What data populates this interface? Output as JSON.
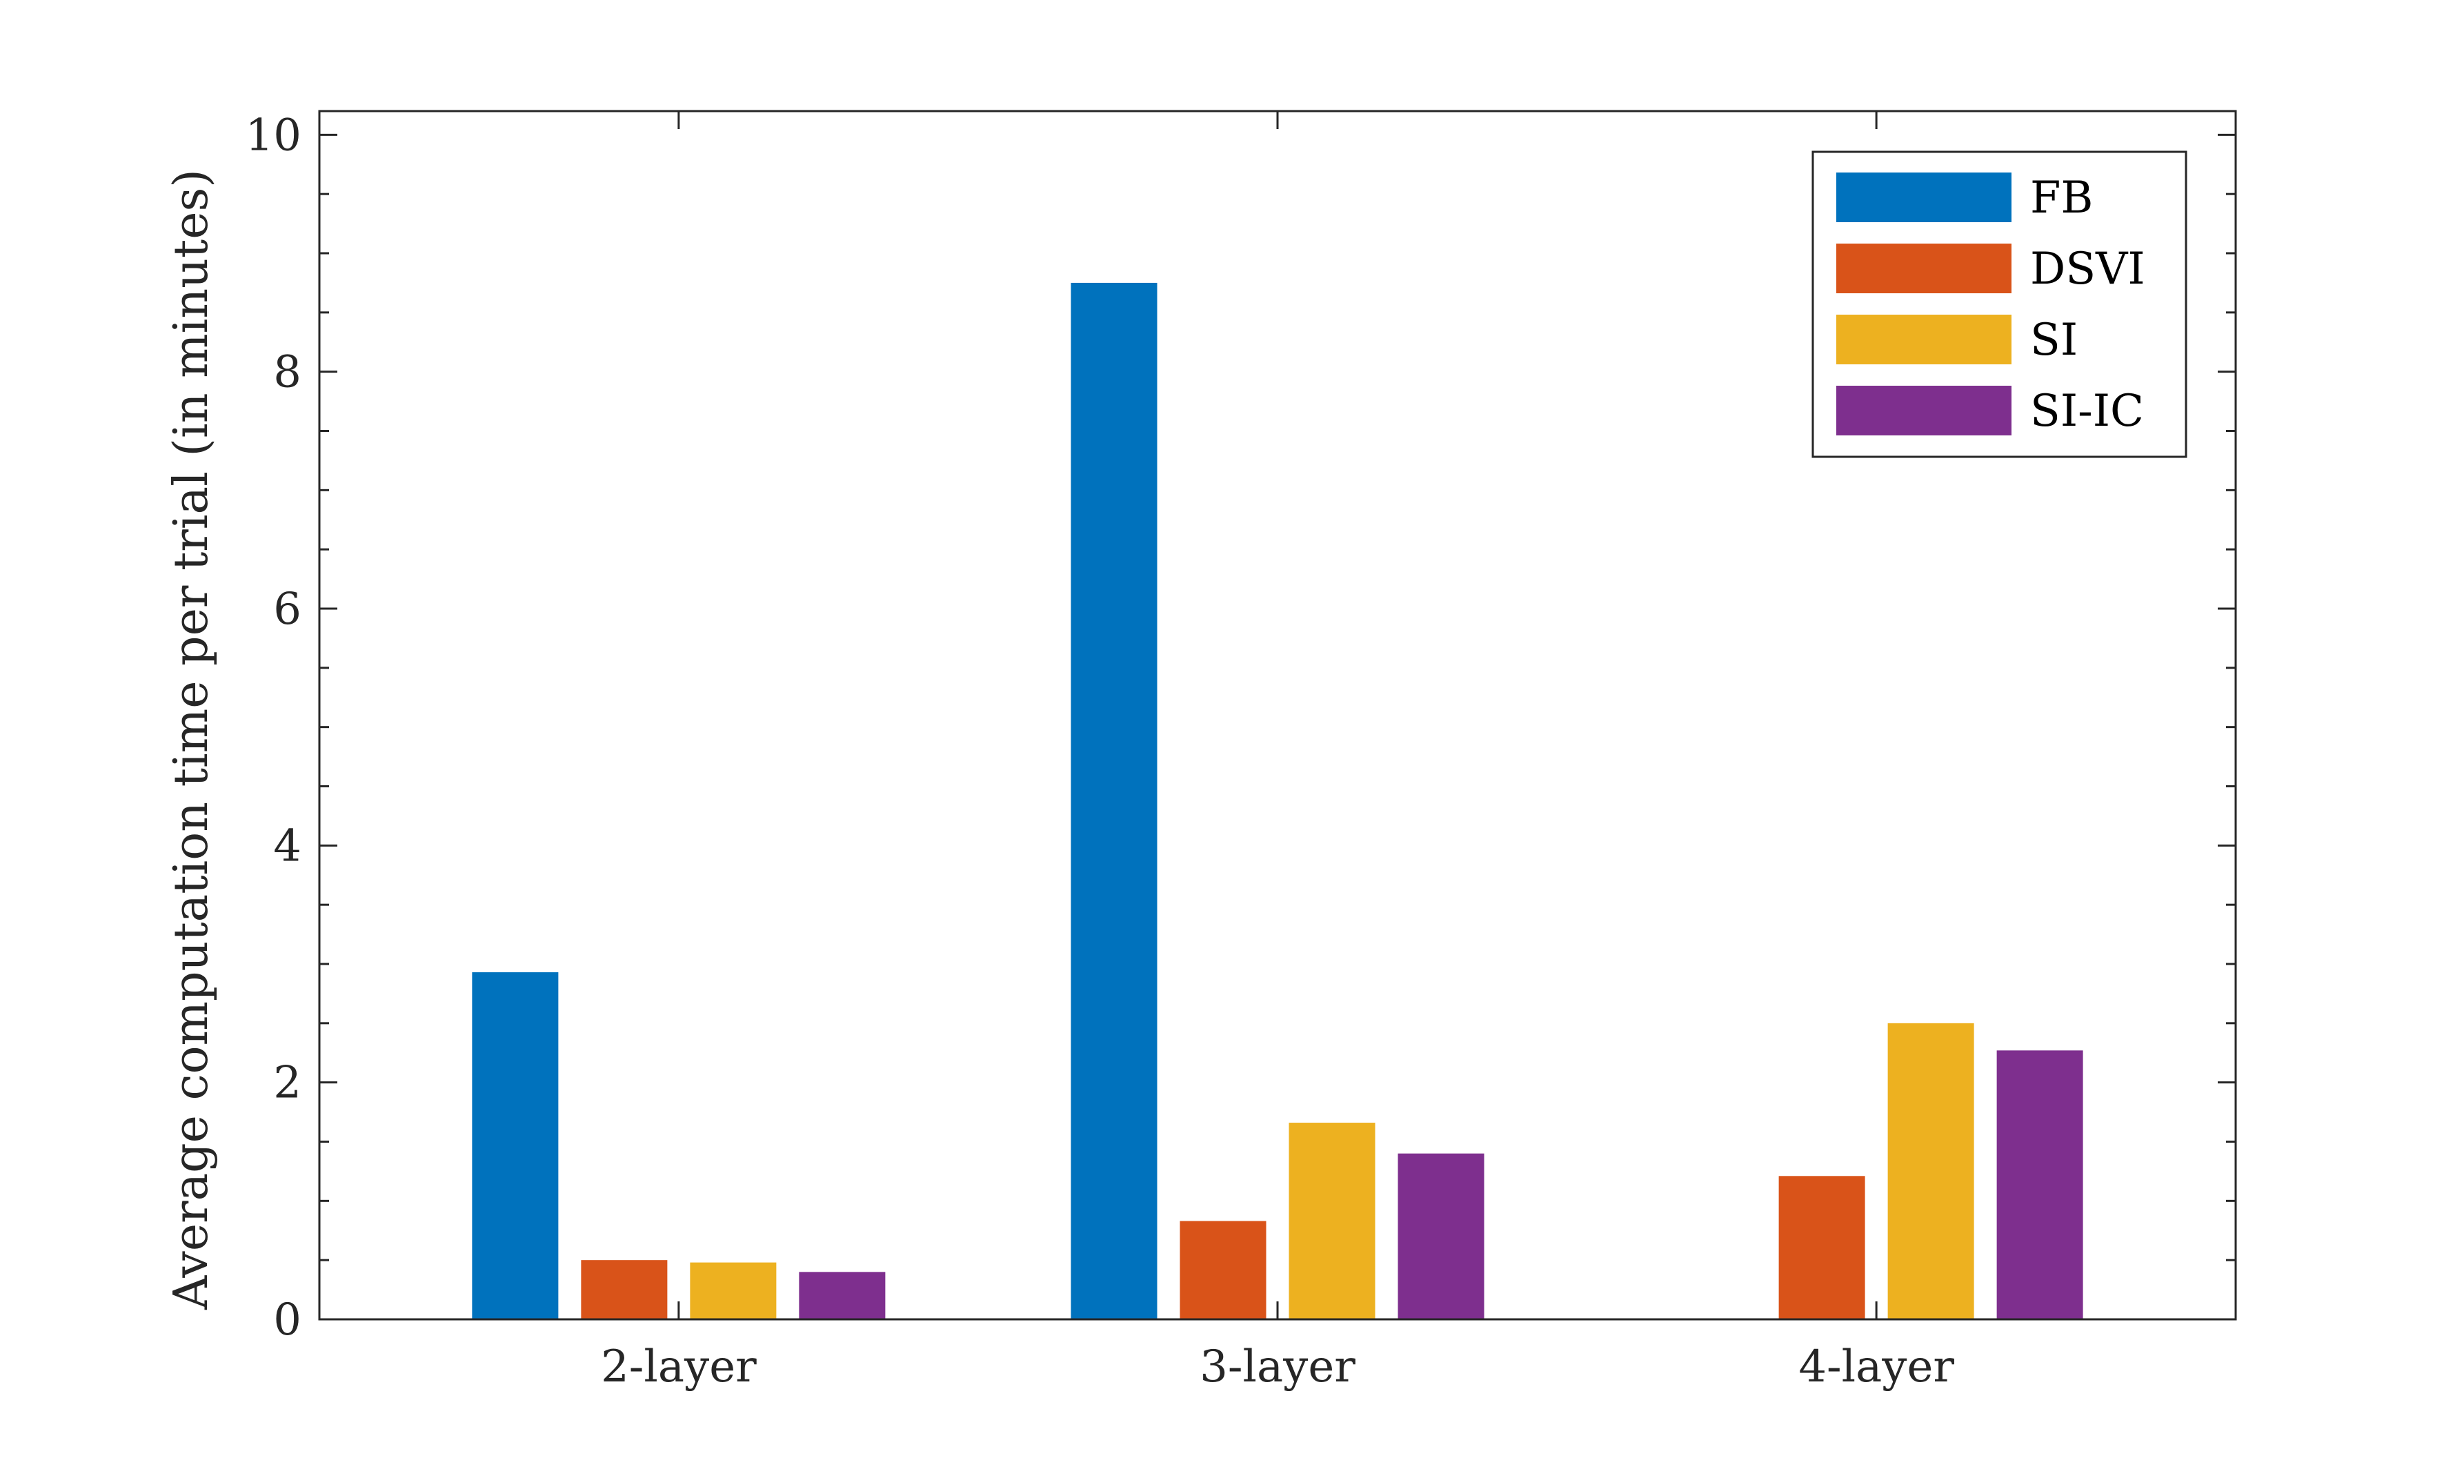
{
  "chart_data": {
    "type": "bar",
    "title": "",
    "xlabel": "",
    "ylabel": "Average computation time per trial (in minutes)",
    "categories": [
      "2-layer",
      "3-layer",
      "4-layer"
    ],
    "ylim": [
      0,
      10.2
    ],
    "yticks": [
      0,
      2,
      4,
      6,
      8,
      10
    ],
    "y_minor_step": 0.5,
    "grid": false,
    "legend_position": "top-right",
    "series": [
      {
        "name": "FB",
        "color": "#0072BD",
        "values": [
          2.93,
          8.75,
          0
        ]
      },
      {
        "name": "DSVI",
        "color": "#D95319",
        "values": [
          0.5,
          0.83,
          1.21
        ]
      },
      {
        "name": "SI",
        "color": "#EDB120",
        "values": [
          0.48,
          1.66,
          2.5
        ]
      },
      {
        "name": "SI-IC",
        "color": "#7E2F8E",
        "values": [
          0.4,
          1.4,
          2.27
        ]
      }
    ]
  }
}
